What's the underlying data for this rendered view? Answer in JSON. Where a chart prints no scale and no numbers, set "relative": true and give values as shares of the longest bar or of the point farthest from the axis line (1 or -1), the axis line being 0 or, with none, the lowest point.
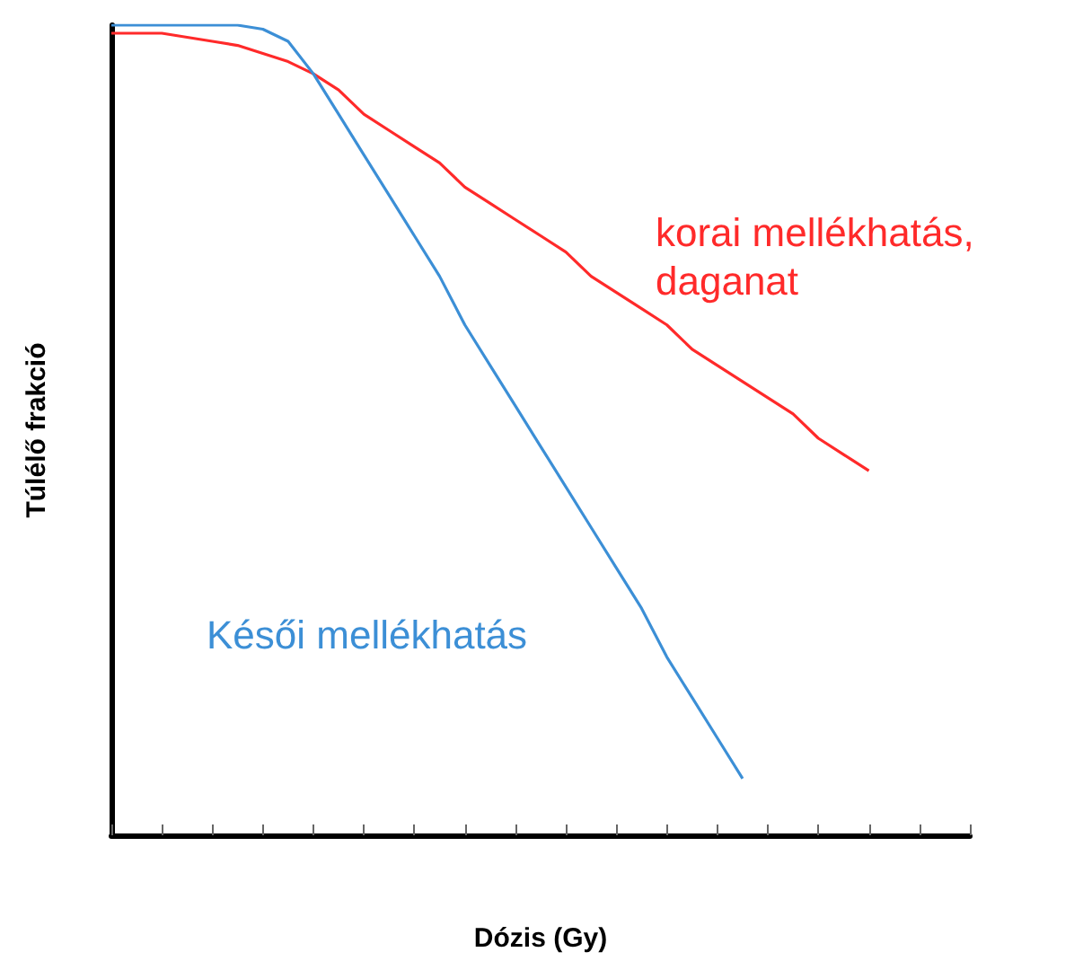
{
  "chart_data": {
    "type": "line",
    "relative": true,
    "xlabel": "Dózis (Gy)",
    "ylabel": "Túlélő frakció",
    "legend": false,
    "grid": false,
    "marker": "none",
    "categories": [
      null,
      null,
      null,
      null,
      null,
      null,
      null,
      null,
      null,
      null,
      null,
      null,
      null,
      null,
      null,
      null,
      null,
      null,
      null,
      null,
      null,
      null,
      null,
      null,
      null,
      null,
      null,
      null,
      null,
      null,
      null,
      null,
      null,
      null,
      null
    ],
    "series": [
      {
        "name": "korai mellékhatás,\ndaganat",
        "color": "#ff2a2a",
        "values": [
          0.99,
          0.99,
          0.99,
          0.985,
          0.98,
          0.975,
          0.965,
          0.955,
          0.94,
          0.92,
          0.89,
          0.87,
          0.85,
          0.83,
          0.8,
          0.78,
          0.76,
          0.74,
          0.72,
          0.69,
          0.67,
          0.65,
          0.63,
          0.6,
          0.58,
          0.56,
          0.54,
          0.52,
          0.49,
          0.47,
          0.45,
          null,
          null,
          null,
          null
        ]
      },
      {
        "name": "Késői mellékhatás",
        "color": "#3c8fd6",
        "values": [
          1.0,
          1.0,
          1.0,
          1.0,
          1.0,
          1.0,
          0.995,
          0.98,
          0.94,
          0.89,
          0.84,
          0.79,
          0.74,
          0.69,
          0.63,
          0.58,
          0.53,
          0.48,
          0.43,
          0.38,
          0.33,
          0.28,
          0.22,
          0.17,
          0.12,
          0.07,
          null,
          null,
          null,
          null,
          null,
          null,
          null,
          null,
          null
        ]
      }
    ]
  }
}
